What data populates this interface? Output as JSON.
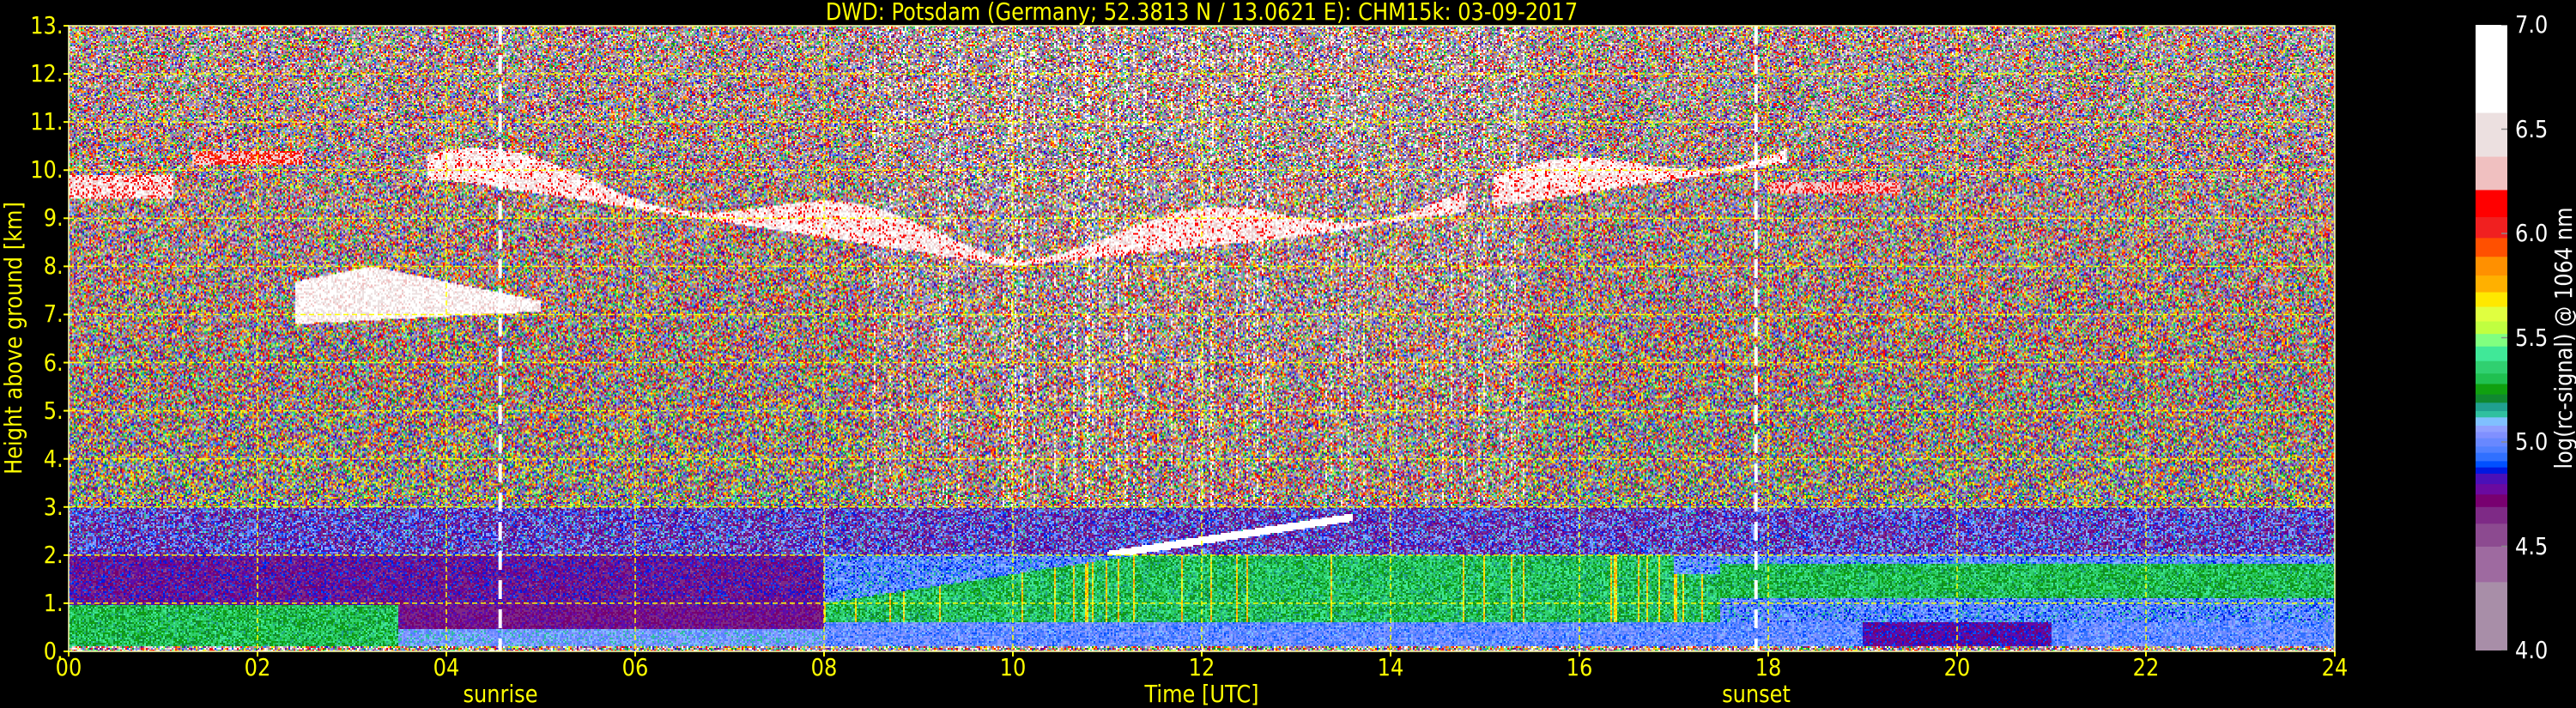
{
  "chart_data": {
    "type": "heatmap",
    "title": "DWD: Potsdam (Germany; 52.3813 N / 13.0621 E):    CHM15k: 03-09-2017",
    "xlabel": "Time [UTC]",
    "ylabel": "Height above ground [km]",
    "xlim": [
      0,
      24
    ],
    "ylim": [
      0,
      13
    ],
    "x_ticks": [
      "00",
      "02",
      "04",
      "06",
      "08",
      "10",
      "12",
      "14",
      "16",
      "18",
      "20",
      "22",
      "24"
    ],
    "y_ticks": [
      "0.",
      "1.",
      "2.",
      "3.",
      "4.",
      "5.",
      "6.",
      "7.",
      "8.",
      "9.",
      "10.",
      "11.",
      "12.",
      "13."
    ],
    "grid": true,
    "grid_color": "#ffff00",
    "events": [
      {
        "label": "sunrise",
        "time": 4.57
      },
      {
        "label": "sunset",
        "time": 17.87
      }
    ],
    "colorbar": {
      "label": "log(rc-signal) @ 1064 nm",
      "range": [
        4.0,
        7.0
      ],
      "ticks": [
        "4.0",
        "4.5",
        "5.0",
        "5.5",
        "6.0",
        "6.5",
        "7.0"
      ],
      "levels": [
        {
          "from": 4.0,
          "to": 4.33,
          "color": "#a88ea8"
        },
        {
          "from": 4.33,
          "to": 4.5,
          "color": "#9e6aa0"
        },
        {
          "from": 4.5,
          "to": 4.61,
          "color": "#8c4a90"
        },
        {
          "from": 4.61,
          "to": 4.69,
          "color": "#7e2a86"
        },
        {
          "from": 4.69,
          "to": 4.75,
          "color": "#780070"
        },
        {
          "from": 4.75,
          "to": 4.8,
          "color": "#6a0aa0"
        },
        {
          "from": 4.8,
          "to": 4.85,
          "color": "#4a10b8"
        },
        {
          "from": 4.85,
          "to": 4.88,
          "color": "#0018e0"
        },
        {
          "from": 4.88,
          "to": 4.91,
          "color": "#0050ff"
        },
        {
          "from": 4.91,
          "to": 4.95,
          "color": "#3070ff"
        },
        {
          "from": 4.95,
          "to": 4.98,
          "color": "#5080ff"
        },
        {
          "from": 4.98,
          "to": 5.02,
          "color": "#6888ff"
        },
        {
          "from": 5.02,
          "to": 5.05,
          "color": "#8090ff"
        },
        {
          "from": 5.05,
          "to": 5.08,
          "color": "#90a0ff"
        },
        {
          "from": 5.08,
          "to": 5.12,
          "color": "#80c0ff"
        },
        {
          "from": 5.12,
          "to": 5.15,
          "color": "#30c0a0"
        },
        {
          "from": 5.15,
          "to": 5.19,
          "color": "#20a090"
        },
        {
          "from": 5.19,
          "to": 5.23,
          "color": "#108830"
        },
        {
          "from": 5.23,
          "to": 5.28,
          "color": "#10a010"
        },
        {
          "from": 5.28,
          "to": 5.33,
          "color": "#20c050"
        },
        {
          "from": 5.33,
          "to": 5.39,
          "color": "#30d070"
        },
        {
          "from": 5.39,
          "to": 5.46,
          "color": "#40e898"
        },
        {
          "from": 5.46,
          "to": 5.52,
          "color": "#80ff80"
        },
        {
          "from": 5.52,
          "to": 5.58,
          "color": "#c0ff40"
        },
        {
          "from": 5.58,
          "to": 5.65,
          "color": "#e0ff40"
        },
        {
          "from": 5.65,
          "to": 5.72,
          "color": "#ffe800"
        },
        {
          "from": 5.72,
          "to": 5.8,
          "color": "#ffb000"
        },
        {
          "from": 5.8,
          "to": 5.89,
          "color": "#ff9000"
        },
        {
          "from": 5.89,
          "to": 5.98,
          "color": "#ff5000"
        },
        {
          "from": 5.98,
          "to": 6.08,
          "color": "#f02020"
        },
        {
          "from": 6.08,
          "to": 6.21,
          "color": "#ff0000"
        },
        {
          "from": 6.21,
          "to": 6.37,
          "color": "#f0c0c0"
        },
        {
          "from": 6.37,
          "to": 6.58,
          "color": "#ece0e0"
        },
        {
          "from": 6.58,
          "to": 7.0,
          "color": "#ffffff"
        }
      ]
    }
  }
}
